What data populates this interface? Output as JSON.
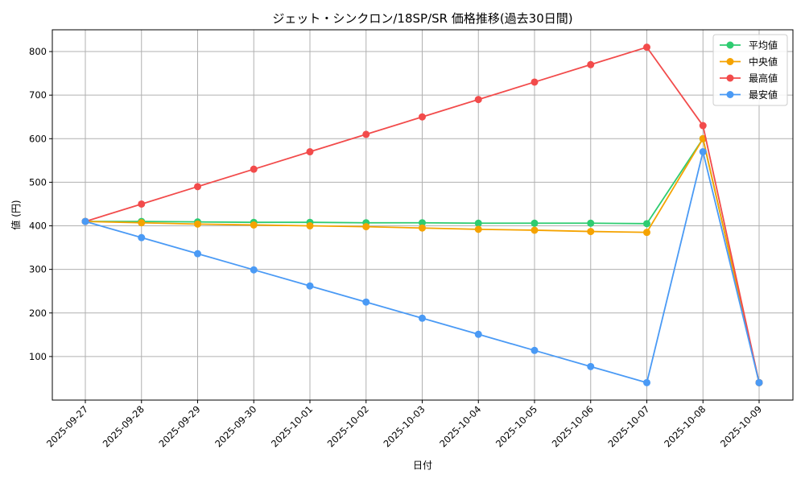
{
  "chart_data": {
    "type": "line",
    "title": "ジェット・シンクロン/18SP/SR 価格推移(過去30日間)",
    "xlabel": "日付",
    "ylabel": "値 (円)",
    "categories": [
      "2025-09-27",
      "2025-09-28",
      "2025-09-29",
      "2025-09-30",
      "2025-10-01",
      "2025-10-02",
      "2025-10-03",
      "2025-10-04",
      "2025-10-05",
      "2025-10-06",
      "2025-10-07",
      "2025-10-08",
      "2025-10-09"
    ],
    "ylim": [
      0,
      850
    ],
    "yticks": [
      100,
      200,
      300,
      400,
      500,
      600,
      700,
      800
    ],
    "grid": true,
    "legend_position": "top-right",
    "series": [
      {
        "name": "平均値",
        "color": "#2ecc71",
        "values": [
          410,
          410,
          409,
          408,
          408,
          407,
          407,
          406,
          406,
          406,
          405,
          600,
          40
        ]
      },
      {
        "name": "中央値",
        "color": "#f5a300",
        "values": [
          410,
          407,
          404,
          402,
          400,
          398,
          395,
          392,
          390,
          387,
          385,
          600,
          40
        ]
      },
      {
        "name": "最高値",
        "color": "#f24b4b",
        "values": [
          410,
          450,
          490,
          530,
          570,
          610,
          650,
          690,
          730,
          770,
          810,
          630,
          40
        ]
      },
      {
        "name": "最安値",
        "color": "#4a9af5",
        "values": [
          410,
          373,
          336,
          299,
          262,
          225,
          188,
          151,
          114,
          77,
          40,
          570,
          40
        ]
      }
    ]
  }
}
